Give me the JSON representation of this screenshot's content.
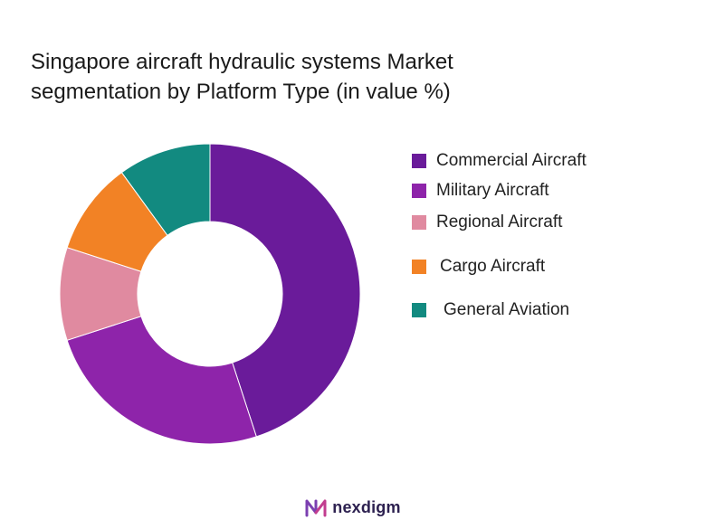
{
  "chart_data": {
    "type": "pie",
    "title_lines": [
      "Singapore aircraft hydraulic systems Market",
      "segmentation by Platform Type (in value %)"
    ],
    "categories": [
      "Commercial Aircraft",
      "Military Aircraft",
      "Regional Aircraft",
      "Cargo Aircraft",
      "General Aviation"
    ],
    "values": [
      45,
      25,
      10,
      10,
      10
    ],
    "colors": [
      "#6a1b9a",
      "#8e24aa",
      "#e08aa0",
      "#f28225",
      "#128a80"
    ],
    "donut": true,
    "legend_position": "right"
  },
  "brand": {
    "name": "nexdigm"
  }
}
